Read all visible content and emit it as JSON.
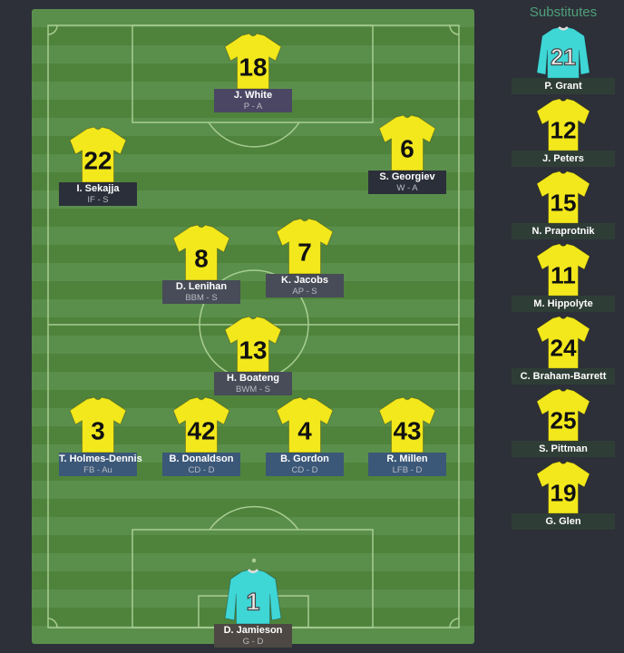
{
  "colors": {
    "outfield_shirt": "#f2e81c",
    "gk_shirt": "#3fd6d6",
    "attack_label": "#2b2f3a",
    "mid_label": "#474c58",
    "def_label": "#3b5878",
    "striker_label": "#4b4664",
    "gk_label": "#4d4843",
    "sub_label": "#2f3d37",
    "subs_title": "#4fa07a"
  },
  "lineup": [
    {
      "number": "18",
      "name": "J. White",
      "role": "P - A",
      "line": "striker",
      "gk": false
    },
    {
      "number": "22",
      "name": "I. Sekajja",
      "role": "IF - S",
      "line": "attack",
      "gk": false
    },
    {
      "number": "6",
      "name": "S. Georgiev",
      "role": "W - A",
      "line": "attack",
      "gk": false
    },
    {
      "number": "8",
      "name": "D. Lenihan",
      "role": "BBM - S",
      "line": "mid",
      "gk": false
    },
    {
      "number": "7",
      "name": "K. Jacobs",
      "role": "AP - S",
      "line": "mid",
      "gk": false
    },
    {
      "number": "13",
      "name": "H. Boateng",
      "role": "BWM - S",
      "line": "mid",
      "gk": false
    },
    {
      "number": "3",
      "name": "T. Holmes-Dennis",
      "role": "FB - Au",
      "line": "def",
      "gk": false
    },
    {
      "number": "42",
      "name": "B. Donaldson",
      "role": "CD - D",
      "line": "def",
      "gk": false
    },
    {
      "number": "4",
      "name": "B. Gordon",
      "role": "CD - D",
      "line": "def",
      "gk": false
    },
    {
      "number": "43",
      "name": "R. Millen",
      "role": "LFB - D",
      "line": "def",
      "gk": false
    },
    {
      "number": "1",
      "name": "D. Jamieson",
      "role": "G - D",
      "line": "gk",
      "gk": true
    }
  ],
  "substitutes": {
    "title": "Substitutes",
    "players": [
      {
        "number": "21",
        "name": "P. Grant",
        "gk": true
      },
      {
        "number": "12",
        "name": "J. Peters",
        "gk": false
      },
      {
        "number": "15",
        "name": "N. Praprotnik",
        "gk": false
      },
      {
        "number": "11",
        "name": "M. Hippolyte",
        "gk": false
      },
      {
        "number": "24",
        "name": "C. Braham-Barrett",
        "gk": false
      },
      {
        "number": "25",
        "name": "S. Pittman",
        "gk": false
      },
      {
        "number": "19",
        "name": "G. Glen",
        "gk": false
      }
    ]
  }
}
